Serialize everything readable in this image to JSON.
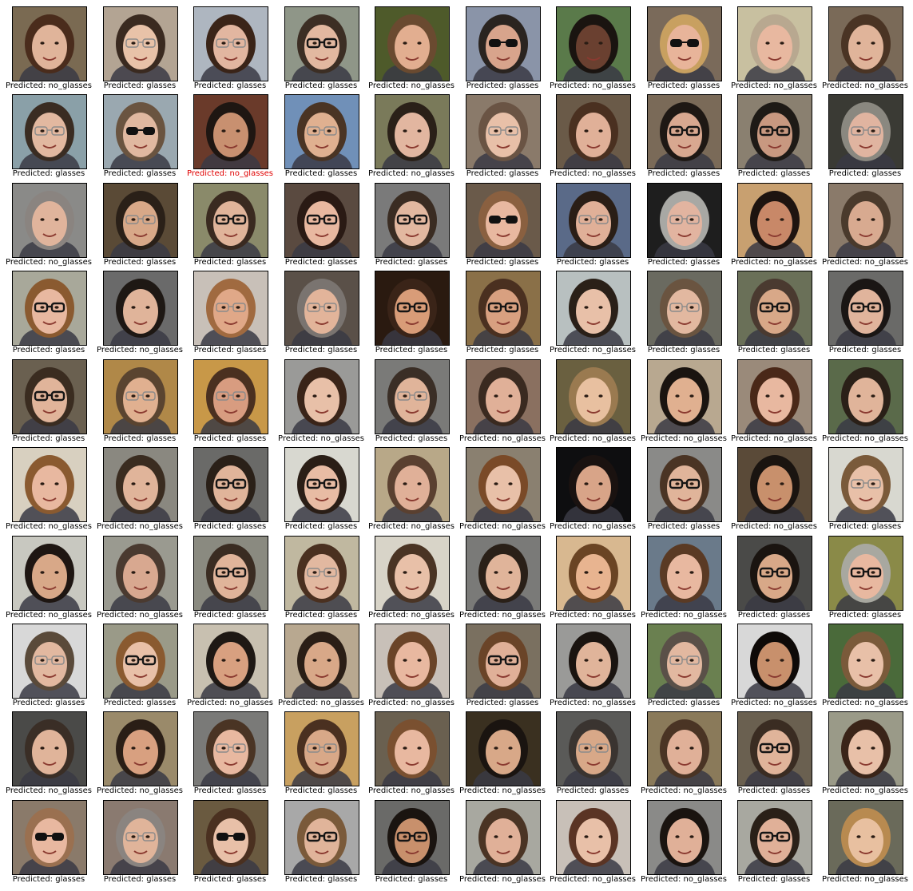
{
  "figure": {
    "rows": 10,
    "cols": 10,
    "caption_prefix": "Predicted: ",
    "colors": {
      "caption": "#000000",
      "misclassified": "#e00000",
      "frame": "#000000"
    },
    "cells": [
      {
        "label": "no_glasses",
        "glasses": "none",
        "bg": "#7a6a52",
        "skin": "#e0b49a",
        "hair": "#4a2c1c"
      },
      {
        "label": "glasses",
        "glasses": "clear",
        "bg": "#b3a493",
        "skin": "#e8c2a8",
        "hair": "#3a2a20"
      },
      {
        "label": "glasses",
        "glasses": "clear",
        "bg": "#aeb6c0",
        "skin": "#e2b6a0",
        "hair": "#3a2418"
      },
      {
        "label": "glasses",
        "glasses": "dark",
        "bg": "#8f9688",
        "skin": "#e2b8a0",
        "hair": "#3c2e24"
      },
      {
        "label": "no_glasses",
        "glasses": "none",
        "bg": "#4e5a2a",
        "skin": "#e2ae90",
        "hair": "#6a4a30"
      },
      {
        "label": "glasses",
        "glasses": "sun",
        "bg": "#8a94a8",
        "skin": "#d8a48c",
        "hair": "#2a2420"
      },
      {
        "label": "no_glasses",
        "glasses": "none",
        "bg": "#5a7a4a",
        "skin": "#6a4030",
        "hair": "#1a1410"
      },
      {
        "label": "glasses",
        "glasses": "sun",
        "bg": "#7a6a5a",
        "skin": "#e8b49a",
        "hair": "#c8a060"
      },
      {
        "label": "no_glasses",
        "glasses": "none",
        "bg": "#c8c0a0",
        "skin": "#e8b8a0",
        "hair": "#b8a890"
      },
      {
        "label": "no_glasses",
        "glasses": "none",
        "bg": "#7a6a58",
        "skin": "#e0b49a",
        "hair": "#4a3424"
      },
      {
        "label": "glasses",
        "glasses": "clear",
        "bg": "#8aa0a8",
        "skin": "#e2b8a0",
        "hair": "#3a2c22"
      },
      {
        "label": "glasses",
        "glasses": "sun",
        "bg": "#9aa8b0",
        "skin": "#e0b8a0",
        "hair": "#6a5440"
      },
      {
        "label": "no_glasses",
        "glasses": "none",
        "bg": "#6a3a2a",
        "skin": "#c89070",
        "hair": "#1e1612",
        "wrong": true
      },
      {
        "label": "glasses",
        "glasses": "clear",
        "bg": "#7090b8",
        "skin": "#e0b090",
        "hair": "#4a3424"
      },
      {
        "label": "no_glasses",
        "glasses": "none",
        "bg": "#7a7a5a",
        "skin": "#e2b6a0",
        "hair": "#2a2018"
      },
      {
        "label": "glasses",
        "glasses": "clear",
        "bg": "#8a7a6a",
        "skin": "#e8c0a8",
        "hair": "#6a5444"
      },
      {
        "label": "no_glasses",
        "glasses": "none",
        "bg": "#6a5a48",
        "skin": "#e0b098",
        "hair": "#4a3020"
      },
      {
        "label": "glasses",
        "glasses": "dark",
        "bg": "#7a6a58",
        "skin": "#d8a890",
        "hair": "#1e1814"
      },
      {
        "label": "glasses",
        "glasses": "dark",
        "bg": "#8a8070",
        "skin": "#c89880",
        "hair": "#1e1a16"
      },
      {
        "label": "glasses",
        "glasses": "clear",
        "bg": "#3a3a34",
        "skin": "#e0b4a0",
        "hair": "#8a8880"
      },
      {
        "label": "no_glasses",
        "glasses": "none",
        "bg": "#8a8a88",
        "skin": "#e0b49c",
        "hair": "#8a8480"
      },
      {
        "label": "glasses",
        "glasses": "clear",
        "bg": "#5a4a36",
        "skin": "#d8a888",
        "hair": "#2a2018"
      },
      {
        "label": "glasses",
        "glasses": "dark",
        "bg": "#8a8a6a",
        "skin": "#e0b49a",
        "hair": "#3a2a20"
      },
      {
        "label": "glasses",
        "glasses": "dark",
        "bg": "#5a4a40",
        "skin": "#e8b8a0",
        "hair": "#2a1a14"
      },
      {
        "label": "glasses",
        "glasses": "dark",
        "bg": "#7a7a7a",
        "skin": "#e2b8a0",
        "hair": "#3a2c22"
      },
      {
        "label": "glasses",
        "glasses": "sun",
        "bg": "#6a5a4a",
        "skin": "#e8b8a0",
        "hair": "#8a6040"
      },
      {
        "label": "glasses",
        "glasses": "clear",
        "bg": "#5a6a88",
        "skin": "#e0b098",
        "hair": "#2a1e16"
      },
      {
        "label": "glasses",
        "glasses": "clear",
        "bg": "#1e1e1e",
        "skin": "#e2b4a0",
        "hair": "#a8a8a4"
      },
      {
        "label": "no_glasses",
        "glasses": "none",
        "bg": "#c8a070",
        "skin": "#c88868",
        "hair": "#1e1410"
      },
      {
        "label": "no_glasses",
        "glasses": "none",
        "bg": "#8a7a6a",
        "skin": "#d8aa90",
        "hair": "#4a3a2c"
      },
      {
        "label": "glasses",
        "glasses": "dark",
        "bg": "#a8a89a",
        "skin": "#e8b8a0",
        "hair": "#8a5a30"
      },
      {
        "label": "no_glasses",
        "glasses": "none",
        "bg": "#6a6a6a",
        "skin": "#e0b49a",
        "hair": "#1e1814"
      },
      {
        "label": "glasses",
        "glasses": "clear",
        "bg": "#c8c0b8",
        "skin": "#e0a888",
        "hair": "#a06a40"
      },
      {
        "label": "glasses",
        "glasses": "clear",
        "bg": "#5a5048",
        "skin": "#e2b49a",
        "hair": "#7a7470"
      },
      {
        "label": "glasses",
        "glasses": "dark",
        "bg": "#2a1a10",
        "skin": "#d89c78",
        "hair": "#3a2418"
      },
      {
        "label": "glasses",
        "glasses": "dark",
        "bg": "#8a7048",
        "skin": "#d8a080",
        "hair": "#4a3020"
      },
      {
        "label": "no_glasses",
        "glasses": "none",
        "bg": "#b8c0c0",
        "skin": "#e8c0a8",
        "hair": "#2a2018"
      },
      {
        "label": "glasses",
        "glasses": "clear",
        "bg": "#6a6a60",
        "skin": "#e2b8a0",
        "hair": "#6a5440"
      },
      {
        "label": "glasses",
        "glasses": "dark",
        "bg": "#6a7058",
        "skin": "#d8a888",
        "hair": "#4a3a30"
      },
      {
        "label": "glasses",
        "glasses": "dark",
        "bg": "#6a6a68",
        "skin": "#e0b49c",
        "hair": "#1a1614"
      },
      {
        "label": "glasses",
        "glasses": "dark",
        "bg": "#6a6050",
        "skin": "#e0b49a",
        "hair": "#3a2c20"
      },
      {
        "label": "glasses",
        "glasses": "clear",
        "bg": "#b08848",
        "skin": "#e0b090",
        "hair": "#5a4430"
      },
      {
        "label": "glasses",
        "glasses": "clear",
        "bg": "#c89848",
        "skin": "#d89c80",
        "hair": "#4a3020"
      },
      {
        "label": "no_glasses",
        "glasses": "none",
        "bg": "#9a9a98",
        "skin": "#e8c0a8",
        "hair": "#3a2418"
      },
      {
        "label": "glasses",
        "glasses": "clear",
        "bg": "#7a7a78",
        "skin": "#e0b49a",
        "hair": "#3a2e26"
      },
      {
        "label": "no_glasses",
        "glasses": "none",
        "bg": "#8a7060",
        "skin": "#e0b098",
        "hair": "#3a2a20"
      },
      {
        "label": "no_glasses",
        "glasses": "none",
        "bg": "#6a6040",
        "skin": "#e8c0a0",
        "hair": "#9a7a50"
      },
      {
        "label": "no_glasses",
        "glasses": "none",
        "bg": "#b8a890",
        "skin": "#e0b090",
        "hair": "#1a1410"
      },
      {
        "label": "no_glasses",
        "glasses": "none",
        "bg": "#9a8a7a",
        "skin": "#e8b8a0",
        "hair": "#4a2818"
      },
      {
        "label": "no_glasses",
        "glasses": "none",
        "bg": "#5a6a4a",
        "skin": "#e0b49a",
        "hair": "#2a2018"
      },
      {
        "label": "no_glasses",
        "glasses": "none",
        "bg": "#d8d0c0",
        "skin": "#e8b8a0",
        "hair": "#8a5a30"
      },
      {
        "label": "no_glasses",
        "glasses": "none",
        "bg": "#8a8880",
        "skin": "#e0b49a",
        "hair": "#3a2c20"
      },
      {
        "label": "glasses",
        "glasses": "dark",
        "bg": "#6a6a68",
        "skin": "#e0b49a",
        "hair": "#2a2018"
      },
      {
        "label": "glasses",
        "glasses": "dark",
        "bg": "#d8d8d0",
        "skin": "#e8bca4",
        "hair": "#2a1e16"
      },
      {
        "label": "no_glasses",
        "glasses": "none",
        "bg": "#b8a888",
        "skin": "#e0b098",
        "hair": "#5a4030"
      },
      {
        "label": "no_glasses",
        "glasses": "none",
        "bg": "#8a8070",
        "skin": "#e8c0a8",
        "hair": "#7a4a28"
      },
      {
        "label": "no_glasses",
        "glasses": "none",
        "bg": "#0e0e10",
        "skin": "#d8a488",
        "hair": "#1a1210"
      },
      {
        "label": "glasses",
        "glasses": "dark",
        "bg": "#8a8a88",
        "skin": "#e0b49a",
        "hair": "#4a3424"
      },
      {
        "label": "no_glasses",
        "glasses": "none",
        "bg": "#5a4a38",
        "skin": "#c8906c",
        "hair": "#1a1410"
      },
      {
        "label": "glasses",
        "glasses": "clear",
        "bg": "#d8d8d0",
        "skin": "#e8c0a8",
        "hair": "#7a5a3a"
      },
      {
        "label": "no_glasses",
        "glasses": "none",
        "bg": "#c8c8c0",
        "skin": "#d8a888",
        "hair": "#1e1612"
      },
      {
        "label": "no_glasses",
        "glasses": "none",
        "bg": "#9a9a90",
        "skin": "#d8a890",
        "hair": "#4a3a30"
      },
      {
        "label": "glasses",
        "glasses": "dark",
        "bg": "#8a8a80",
        "skin": "#e0b49a",
        "hair": "#3a2c22"
      },
      {
        "label": "glasses",
        "glasses": "clear",
        "bg": "#c0b8a0",
        "skin": "#e2b8a0",
        "hair": "#4a3020"
      },
      {
        "label": "no_glasses",
        "glasses": "none",
        "bg": "#d8d4c8",
        "skin": "#e8c0a8",
        "hair": "#4a3424"
      },
      {
        "label": "no_glasses",
        "glasses": "none",
        "bg": "#7a7a78",
        "skin": "#e0b49a",
        "hair": "#2a2018"
      },
      {
        "label": "no_glasses",
        "glasses": "none",
        "bg": "#d8b890",
        "skin": "#e8b490",
        "hair": "#6a4424"
      },
      {
        "label": "no_glasses",
        "glasses": "none",
        "bg": "#6a7a8a",
        "skin": "#e8b8a0",
        "hair": "#5a3a24"
      },
      {
        "label": "glasses",
        "glasses": "dark",
        "bg": "#4a4a48",
        "skin": "#d8a888",
        "hair": "#1a1410"
      },
      {
        "label": "glasses",
        "glasses": "dark",
        "bg": "#8a8a48",
        "skin": "#e8b8a0",
        "hair": "#a8a8a0"
      },
      {
        "label": "glasses",
        "glasses": "clear",
        "bg": "#d8d8d8",
        "skin": "#e2b8a0",
        "hair": "#5a4a3a"
      },
      {
        "label": "glasses",
        "glasses": "dark",
        "bg": "#9a9a88",
        "skin": "#e8c0a8",
        "hair": "#8a5a30"
      },
      {
        "label": "no_glasses",
        "glasses": "none",
        "bg": "#c8c0b0",
        "skin": "#d8a080",
        "hair": "#1e1814"
      },
      {
        "label": "no_glasses",
        "glasses": "none",
        "bg": "#b8a890",
        "skin": "#d8a888",
        "hair": "#2a1e16"
      },
      {
        "label": "no_glasses",
        "glasses": "none",
        "bg": "#c8c0b8",
        "skin": "#e8b8a0",
        "hair": "#6a4428"
      },
      {
        "label": "glasses",
        "glasses": "dark",
        "bg": "#7a7060",
        "skin": "#e0b098",
        "hair": "#6a4428"
      },
      {
        "label": "no_glasses",
        "glasses": "none",
        "bg": "#9a9a98",
        "skin": "#e0b49a",
        "hair": "#1a1410"
      },
      {
        "label": "glasses",
        "glasses": "clear",
        "bg": "#6a8050",
        "skin": "#e2b8a0",
        "hair": "#5a5048"
      },
      {
        "label": "no_glasses",
        "glasses": "none",
        "bg": "#d8d8d8",
        "skin": "#c8906c",
        "hair": "#0e0a08"
      },
      {
        "label": "no_glasses",
        "glasses": "none",
        "bg": "#4a6a3a",
        "skin": "#e8c0a8",
        "hair": "#7a5a3a"
      },
      {
        "label": "no_glasses",
        "glasses": "none",
        "bg": "#4a4a48",
        "skin": "#e0b49a",
        "hair": "#3a2e26"
      },
      {
        "label": "no_glasses",
        "glasses": "none",
        "bg": "#9a8a6a",
        "skin": "#d8a080",
        "hair": "#2a1e16"
      },
      {
        "label": "glasses",
        "glasses": "clear",
        "bg": "#7a7a78",
        "skin": "#e8b8a0",
        "hair": "#4a3424"
      },
      {
        "label": "glasses",
        "glasses": "clear",
        "bg": "#c8a060",
        "skin": "#d8a888",
        "hair": "#4a3020"
      },
      {
        "label": "no_glasses",
        "glasses": "none",
        "bg": "#6a6050",
        "skin": "#e8b8a0",
        "hair": "#7a5030"
      },
      {
        "label": "no_glasses",
        "glasses": "none",
        "bg": "#3a3020",
        "skin": "#d8a888",
        "hair": "#1a1410"
      },
      {
        "label": "glasses",
        "glasses": "clear",
        "bg": "#5a5a58",
        "skin": "#d8a888",
        "hair": "#3a3430"
      },
      {
        "label": "no_glasses",
        "glasses": "none",
        "bg": "#8a7a5a",
        "skin": "#e0b098",
        "hair": "#4a3424"
      },
      {
        "label": "glasses",
        "glasses": "dark",
        "bg": "#6a6050",
        "skin": "#e0b49a",
        "hair": "#3a2c22"
      },
      {
        "label": "no_glasses",
        "glasses": "none",
        "bg": "#9a9a88",
        "skin": "#e8c0a8",
        "hair": "#3a2418"
      },
      {
        "label": "glasses",
        "glasses": "sun",
        "bg": "#8a7a6a",
        "skin": "#e8b8a0",
        "hair": "#9a7050"
      },
      {
        "label": "glasses",
        "glasses": "clear",
        "bg": "#8a7a70",
        "skin": "#e0b49a",
        "hair": "#8a8480"
      },
      {
        "label": "glasses",
        "glasses": "sun",
        "bg": "#6a5a40",
        "skin": "#e8c0a8",
        "hair": "#4a3020"
      },
      {
        "label": "glasses",
        "glasses": "dark",
        "bg": "#a8a8a8",
        "skin": "#e0b49a",
        "hair": "#7a5a3a"
      },
      {
        "label": "glasses",
        "glasses": "dark",
        "bg": "#6a6a68",
        "skin": "#c8906c",
        "hair": "#1a1410"
      },
      {
        "label": "no_glasses",
        "glasses": "none",
        "bg": "#a8a8a0",
        "skin": "#e0b098",
        "hair": "#4a3424"
      },
      {
        "label": "no_glasses",
        "glasses": "none",
        "bg": "#c8c0b8",
        "skin": "#e8c0a8",
        "hair": "#5a3424"
      },
      {
        "label": "no_glasses",
        "glasses": "none",
        "bg": "#8a8a88",
        "skin": "#e0b098",
        "hair": "#1a1410"
      },
      {
        "label": "glasses",
        "glasses": "dark",
        "bg": "#a8a8a0",
        "skin": "#e0b098",
        "hair": "#2a2018"
      },
      {
        "label": "no_glasses",
        "glasses": "none",
        "bg": "#6a6a5a",
        "skin": "#e8c0a0",
        "hair": "#b88a50"
      }
    ]
  }
}
